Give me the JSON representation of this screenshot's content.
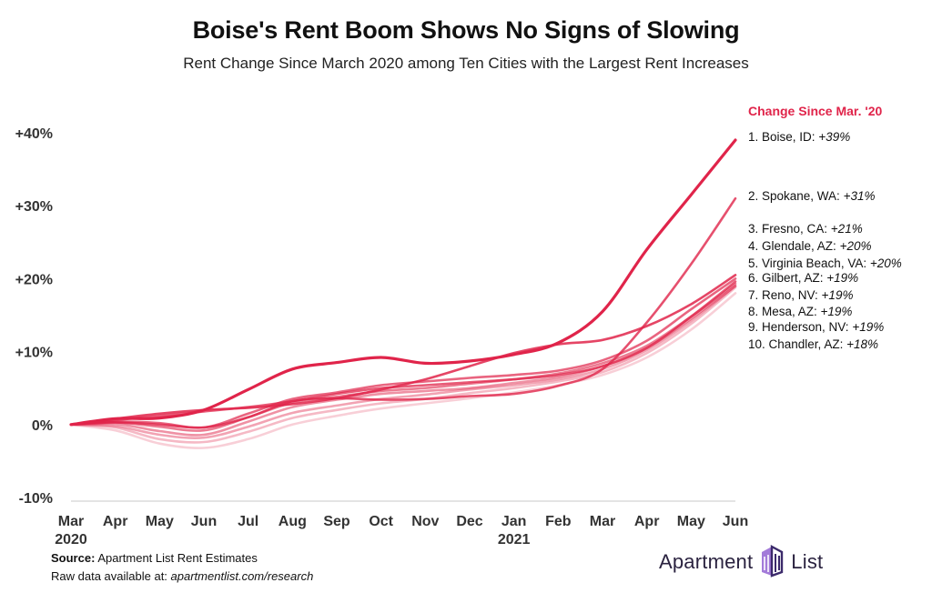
{
  "header": {
    "title": "Boise's Rent Boom Shows No Signs of Slowing",
    "subtitle": "Rent Change Since March 2020 among Ten Cities with the Largest Rent Increases"
  },
  "chart_data": {
    "type": "line",
    "x": [
      "Mar 2020",
      "Apr",
      "May",
      "Jun",
      "Jul",
      "Aug",
      "Sep",
      "Oct",
      "Nov",
      "Dec",
      "Jan 2021",
      "Feb",
      "Mar",
      "Apr",
      "May",
      "Jun"
    ],
    "x_tick_labels": [
      {
        "top": "Mar",
        "bottom": "2020"
      },
      {
        "top": "Apr",
        "bottom": ""
      },
      {
        "top": "May",
        "bottom": ""
      },
      {
        "top": "Jun",
        "bottom": ""
      },
      {
        "top": "Jul",
        "bottom": ""
      },
      {
        "top": "Aug",
        "bottom": ""
      },
      {
        "top": "Sep",
        "bottom": ""
      },
      {
        "top": "Oct",
        "bottom": ""
      },
      {
        "top": "Nov",
        "bottom": ""
      },
      {
        "top": "Dec",
        "bottom": ""
      },
      {
        "top": "Jan",
        "bottom": "2021"
      },
      {
        "top": "Feb",
        "bottom": ""
      },
      {
        "top": "Mar",
        "bottom": ""
      },
      {
        "top": "Apr",
        "bottom": ""
      },
      {
        "top": "May",
        "bottom": ""
      },
      {
        "top": "Jun",
        "bottom": ""
      }
    ],
    "y_ticks": [
      {
        "value": 40,
        "label": "+40%"
      },
      {
        "value": 30,
        "label": "+30%"
      },
      {
        "value": 20,
        "label": "+20%"
      },
      {
        "value": 10,
        "label": "+10%"
      },
      {
        "value": 0,
        "label": "0%"
      },
      {
        "value": -10,
        "label": "-10%"
      }
    ],
    "ylim": [
      -10,
      40
    ],
    "grid": false,
    "legend_position": "right",
    "legend_title": "Change Since Mar. '20",
    "series": [
      {
        "name": "Boise, ID",
        "rank": "1.",
        "final_label": "+39%",
        "color": "#e0244a",
        "opacity": 1.0,
        "values": [
          0,
          0.8,
          0.9,
          2.0,
          4.8,
          7.6,
          8.5,
          9.2,
          8.4,
          8.7,
          9.6,
          11.2,
          15.5,
          24.0,
          31.5,
          39.0
        ]
      },
      {
        "name": "Spokane, WA",
        "rank": "2.",
        "final_label": "+31%",
        "color": "#e0244a",
        "opacity": 0.8,
        "values": [
          0,
          0.3,
          0,
          -0.4,
          1.0,
          3.2,
          3.6,
          3.4,
          3.5,
          3.9,
          4.2,
          5.3,
          7.6,
          14.0,
          22.0,
          31.0
        ]
      },
      {
        "name": "Fresno, CA",
        "rank": "3.",
        "final_label": "+21%",
        "color": "#e0244a",
        "opacity": 0.85,
        "values": [
          0,
          0.8,
          1.5,
          2.0,
          2.3,
          2.8,
          3.6,
          4.8,
          6.2,
          8.0,
          9.8,
          11.0,
          11.6,
          13.5,
          16.5,
          20.5
        ]
      },
      {
        "name": "Glendale, AZ",
        "rank": "4.",
        "final_label": "+20%",
        "color": "#e0244a",
        "opacity": 0.7,
        "values": [
          0,
          0.4,
          0.2,
          -0.4,
          1.5,
          3.5,
          4.4,
          5.4,
          5.9,
          6.4,
          6.8,
          7.4,
          8.8,
          11.5,
          15.8,
          20.0
        ]
      },
      {
        "name": "Virginia Beach, VA",
        "rank": "5.",
        "final_label": "+20%",
        "color": "#e0244a",
        "opacity": 0.75,
        "values": [
          0,
          0.6,
          1.2,
          1.8,
          2.4,
          3.2,
          4.2,
          5.0,
          5.4,
          5.8,
          6.2,
          6.8,
          8.0,
          10.5,
          14.8,
          19.6
        ]
      },
      {
        "name": "Gilbert, AZ",
        "rank": "6.",
        "final_label": "+19%",
        "color": "#e0244a",
        "opacity": 0.6,
        "values": [
          0,
          0.3,
          -0.3,
          -0.8,
          1.0,
          3.0,
          3.8,
          4.6,
          5.0,
          5.6,
          6.2,
          7.0,
          8.4,
          10.8,
          14.8,
          19.3
        ]
      },
      {
        "name": "Reno, NV",
        "rank": "7.",
        "final_label": "+19%",
        "color": "#e0244a",
        "opacity": 0.5,
        "values": [
          0,
          0.1,
          -0.9,
          -1.4,
          0.4,
          2.4,
          3.4,
          4.2,
          4.6,
          5.0,
          5.7,
          6.5,
          8.0,
          10.5,
          14.5,
          19.0
        ]
      },
      {
        "name": "Mesa, AZ",
        "rank": "8.",
        "final_label": "+19%",
        "color": "#e0244a",
        "opacity": 0.42,
        "values": [
          0,
          -0.2,
          -1.4,
          -1.8,
          -0.3,
          1.6,
          2.6,
          3.5,
          4.1,
          4.8,
          5.4,
          6.2,
          7.6,
          10.2,
          14.2,
          19.0
        ]
      },
      {
        "name": "Henderson, NV",
        "rank": "9.",
        "final_label": "+19%",
        "color": "#e0244a",
        "opacity": 0.32,
        "values": [
          0,
          -0.4,
          -2.0,
          -2.4,
          -1.0,
          0.9,
          2.0,
          2.9,
          3.5,
          4.3,
          5.0,
          5.9,
          7.2,
          9.8,
          13.8,
          18.8
        ]
      },
      {
        "name": "Chandler, AZ",
        "rank": "10.",
        "final_label": "+18%",
        "color": "#e0244a",
        "opacity": 0.22,
        "values": [
          0,
          -0.8,
          -2.6,
          -3.2,
          -2.0,
          0,
          1.2,
          2.2,
          2.9,
          3.6,
          4.4,
          5.4,
          6.8,
          9.2,
          13.0,
          18.0
        ]
      }
    ]
  },
  "footer": {
    "source_label": "Source:",
    "source_text": "Apartment List Rent Estimates",
    "raw_prefix": "Raw data available at: ",
    "raw_link": "apartmentlist.com/research"
  },
  "logo": {
    "left_text": "Apartment",
    "right_text": "List",
    "icon": "apartment-list-building-icon",
    "colors": {
      "icon_light": "#a37bd9",
      "icon_dark": "#3b2a6b",
      "text": "#2b2340"
    }
  }
}
